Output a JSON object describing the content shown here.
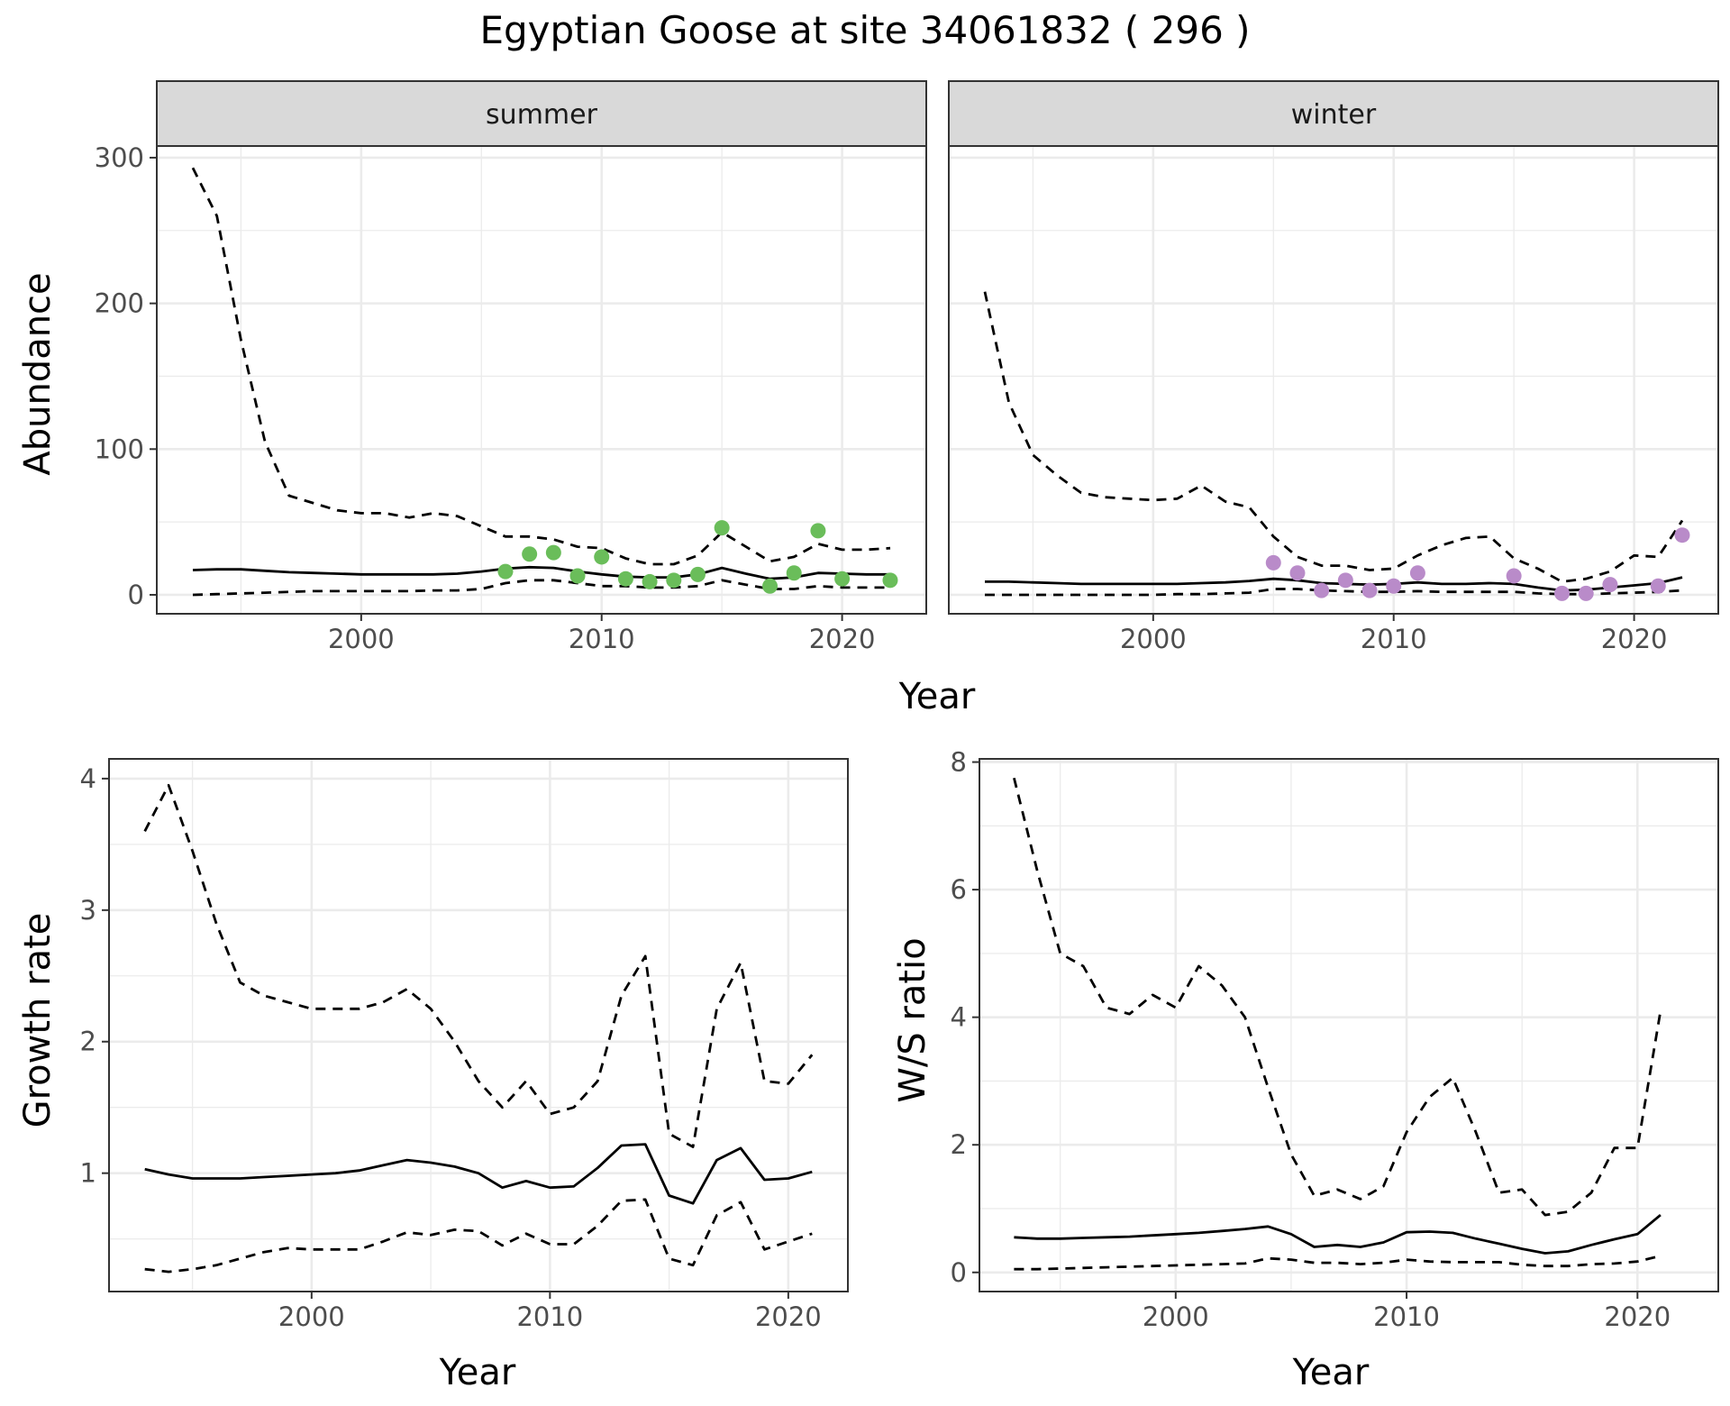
{
  "title": "Egyptian Goose at site 34061832 ( 296 )",
  "colors": {
    "summer_points": "#6ABD5A",
    "winter_points": "#B98BC9",
    "strip_fill": "#D9D9D9",
    "grid": "#EBEBEB",
    "line": "#000000"
  },
  "chart_data": [
    {
      "type": "line",
      "panel": "abundance",
      "facets": [
        "summer",
        "winter"
      ],
      "xlabel": "Year",
      "ylabel": "Abundance",
      "xlim": [
        1991.5,
        2023.5
      ],
      "ylim": [
        -13,
        308
      ],
      "xticks": [
        2000,
        2010,
        2020
      ],
      "yticks": [
        0,
        100,
        200,
        300
      ],
      "x": [
        1993,
        1994,
        1995,
        1996,
        1997,
        1998,
        1999,
        2000,
        2001,
        2002,
        2003,
        2004,
        2005,
        2006,
        2007,
        2008,
        2009,
        2010,
        2011,
        2012,
        2013,
        2014,
        2015,
        2016,
        2017,
        2018,
        2019,
        2020,
        2021,
        2022
      ],
      "summer": {
        "series": [
          {
            "name": "",
            "style": "solid",
            "values": [
              17,
              17.5,
              17.5,
              16.5,
              15.5,
              15,
              14.5,
              14,
              14,
              14,
              14,
              14.5,
              16,
              18,
              19,
              18.5,
              16,
              14,
              12.5,
              12,
              12,
              14,
              18.5,
              14.5,
              11,
              12,
              15,
              14.5,
              14,
              14
            ]
          },
          {
            "name": "",
            "style": "dashed",
            "values": [
              293,
              260,
              175,
              105,
              68,
              63,
              58,
              56,
              56,
              53,
              56,
              54,
              47,
              40,
              40,
              38,
              33,
              32,
              25,
              21,
              21,
              27,
              43,
              33,
              23,
              26,
              35,
              31,
              31,
              32
            ]
          },
          {
            "name": "",
            "style": "dashed",
            "values": [
              0,
              0.5,
              1,
              1.5,
              2,
              2.5,
              2.5,
              2.5,
              2.5,
              2.5,
              3,
              3,
              4,
              8,
              10,
              10,
              8,
              6,
              6,
              5,
              5,
              6,
              10,
              7,
              4,
              4,
              6,
              5,
              5,
              5
            ]
          }
        ],
        "points": [
          {
            "x": 2006,
            "y": 16
          },
          {
            "x": 2007,
            "y": 28
          },
          {
            "x": 2008,
            "y": 29
          },
          {
            "x": 2009,
            "y": 13
          },
          {
            "x": 2010,
            "y": 26
          },
          {
            "x": 2011,
            "y": 11
          },
          {
            "x": 2012,
            "y": 9
          },
          {
            "x": 2013,
            "y": 10
          },
          {
            "x": 2014,
            "y": 14
          },
          {
            "x": 2015,
            "y": 46
          },
          {
            "x": 2017,
            "y": 6
          },
          {
            "x": 2018,
            "y": 15
          },
          {
            "x": 2019,
            "y": 44
          },
          {
            "x": 2020,
            "y": 11
          },
          {
            "x": 2022,
            "y": 10
          }
        ]
      },
      "winter": {
        "series": [
          {
            "name": "",
            "style": "solid",
            "values": [
              9,
              9,
              8.5,
              8,
              7.5,
              7.5,
              7.5,
              7.5,
              7.5,
              8,
              8.5,
              9.5,
              11,
              10,
              8,
              7.5,
              7,
              7.5,
              8.5,
              7.5,
              7.5,
              8,
              7.5,
              5,
              3,
              3.5,
              5,
              6.5,
              8,
              12
            ]
          },
          {
            "name": "",
            "style": "dashed",
            "values": [
              208,
              132,
              96,
              82,
              70,
              67,
              66,
              65,
              66,
              75,
              64,
              60,
              40,
              26,
              20,
              20,
              17,
              18,
              27,
              34,
              39,
              40,
              25,
              18,
              9,
              11,
              16,
              27,
              26,
              51
            ]
          },
          {
            "name": "",
            "style": "dashed",
            "values": [
              0,
              0,
              0,
              0,
              0,
              0,
              0,
              0,
              0.5,
              0.5,
              1,
              1.5,
              4,
              4,
              3,
              2.5,
              2,
              2,
              2.5,
              2,
              2,
              2,
              2,
              1,
              0.5,
              0.5,
              1,
              1.5,
              2,
              3
            ]
          }
        ],
        "points": [
          {
            "x": 2005,
            "y": 22
          },
          {
            "x": 2006,
            "y": 15
          },
          {
            "x": 2007,
            "y": 3
          },
          {
            "x": 2008,
            "y": 10
          },
          {
            "x": 2009,
            "y": 3
          },
          {
            "x": 2010,
            "y": 6
          },
          {
            "x": 2011,
            "y": 15
          },
          {
            "x": 2015,
            "y": 13
          },
          {
            "x": 2017,
            "y": 1
          },
          {
            "x": 2018,
            "y": 1
          },
          {
            "x": 2019,
            "y": 7
          },
          {
            "x": 2021,
            "y": 6
          },
          {
            "x": 2022,
            "y": 41
          }
        ]
      }
    },
    {
      "type": "line",
      "panel": "growth",
      "xlabel": "Year",
      "ylabel": "Growth rate",
      "xlim": [
        1991.5,
        2022.5
      ],
      "ylim": [
        0.1,
        4.15
      ],
      "xticks": [
        2000,
        2010,
        2020
      ],
      "yticks": [
        1,
        2,
        3,
        4
      ],
      "x": [
        1993,
        1994,
        1995,
        1996,
        1997,
        1998,
        1999,
        2000,
        2001,
        2002,
        2003,
        2004,
        2005,
        2006,
        2007,
        2008,
        2009,
        2010,
        2011,
        2012,
        2013,
        2014,
        2015,
        2016,
        2017,
        2018,
        2019,
        2020,
        2021
      ],
      "series": [
        {
          "name": "",
          "style": "solid",
          "values": [
            1.03,
            0.99,
            0.96,
            0.96,
            0.96,
            0.97,
            0.98,
            0.99,
            1.0,
            1.02,
            1.06,
            1.1,
            1.08,
            1.05,
            1.0,
            0.89,
            0.94,
            0.89,
            0.9,
            1.04,
            1.21,
            1.22,
            0.83,
            0.77,
            1.1,
            1.19,
            0.95,
            0.96,
            1.01
          ]
        },
        {
          "name": "",
          "style": "dashed",
          "values": [
            3.6,
            3.95,
            3.45,
            2.9,
            2.45,
            2.35,
            2.3,
            2.25,
            2.25,
            2.25,
            2.3,
            2.4,
            2.25,
            2.0,
            1.7,
            1.5,
            1.7,
            1.45,
            1.5,
            1.7,
            2.35,
            2.65,
            1.3,
            1.2,
            2.25,
            2.6,
            1.7,
            1.68,
            1.9
          ]
        },
        {
          "name": "",
          "style": "dashed",
          "values": [
            0.27,
            0.25,
            0.27,
            0.3,
            0.35,
            0.4,
            0.43,
            0.42,
            0.42,
            0.42,
            0.48,
            0.55,
            0.53,
            0.57,
            0.56,
            0.45,
            0.54,
            0.46,
            0.46,
            0.6,
            0.79,
            0.8,
            0.35,
            0.3,
            0.68,
            0.78,
            0.42,
            0.48,
            0.54
          ]
        }
      ]
    },
    {
      "type": "line",
      "panel": "ratio",
      "xlabel": "Year",
      "ylabel": "W/S ratio",
      "xlim": [
        1991.5,
        2023.5
      ],
      "ylim": [
        -0.3,
        8.05
      ],
      "xticks": [
        2000,
        2010,
        2020
      ],
      "yticks": [
        0,
        2,
        4,
        6,
        8
      ],
      "x": [
        1993,
        1994,
        1995,
        1996,
        1997,
        1998,
        1999,
        2000,
        2001,
        2002,
        2003,
        2004,
        2005,
        2006,
        2007,
        2008,
        2009,
        2010,
        2011,
        2012,
        2013,
        2014,
        2015,
        2016,
        2017,
        2018,
        2019,
        2020,
        2021
      ],
      "series": [
        {
          "name": "",
          "style": "solid",
          "values": [
            0.55,
            0.53,
            0.53,
            0.54,
            0.55,
            0.56,
            0.58,
            0.6,
            0.62,
            0.65,
            0.68,
            0.72,
            0.6,
            0.4,
            0.43,
            0.4,
            0.47,
            0.63,
            0.64,
            0.62,
            0.53,
            0.45,
            0.37,
            0.3,
            0.33,
            0.43,
            0.52,
            0.6,
            0.9
          ]
        },
        {
          "name": "",
          "style": "dashed",
          "values": [
            7.75,
            6.3,
            5.0,
            4.8,
            4.15,
            4.05,
            4.35,
            4.15,
            4.8,
            4.5,
            4.0,
            2.9,
            1.85,
            1.2,
            1.3,
            1.15,
            1.35,
            2.2,
            2.75,
            3.05,
            2.2,
            1.25,
            1.3,
            0.9,
            0.95,
            1.25,
            1.95,
            1.95,
            4.1
          ]
        },
        {
          "name": "",
          "style": "dashed",
          "values": [
            0.05,
            0.05,
            0.06,
            0.07,
            0.08,
            0.09,
            0.1,
            0.11,
            0.12,
            0.13,
            0.14,
            0.22,
            0.2,
            0.15,
            0.15,
            0.13,
            0.15,
            0.2,
            0.17,
            0.16,
            0.16,
            0.16,
            0.12,
            0.1,
            0.1,
            0.13,
            0.14,
            0.17,
            0.26
          ]
        }
      ]
    }
  ]
}
